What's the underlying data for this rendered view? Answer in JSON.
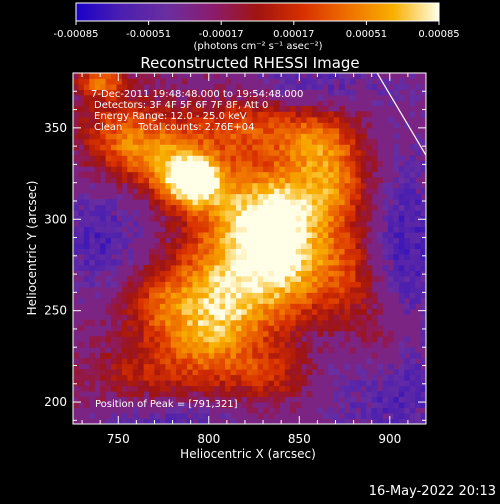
{
  "colors": {
    "background": "#000000",
    "foreground": "#ffffff",
    "colormap": [
      "#1a00c8",
      "#4b1fb0",
      "#6a2ea0",
      "#8a1c6e",
      "#a01410",
      "#d83000",
      "#f07000",
      "#f8b000",
      "#ffffe8"
    ]
  },
  "colorbar": {
    "ticks": [
      "-0.00085",
      "-0.00051",
      "-0.00017",
      "0.00017",
      "0.00051",
      "0.00085"
    ],
    "unit_label": "(photons cm⁻² s⁻¹ asec⁻²)"
  },
  "annotations": {
    "time_range": "7-Dec-2011 19:48:48.000 to 19:54:48.000",
    "detectors": "Detectors: 3F 4F 5F 6F 7F 8F, Att 0",
    "energy": "Energy Range: 12.0 - 25.0 keV",
    "clean": "Clean     Total counts: 2.76E+04",
    "peak": "Position of Peak = [791,321]"
  },
  "footer_timestamp": "16-May-2022 20:13",
  "chart_data": {
    "type": "heatmap",
    "title": "Reconstructed RHESSI Image",
    "xlabel": "Heliocentric X (arcsec)",
    "ylabel": "Heliocentric Y (arcsec)",
    "xlim": [
      725,
      920
    ],
    "ylim": [
      188,
      380
    ],
    "x_ticks": [
      750,
      800,
      850,
      900
    ],
    "y_ticks": [
      200,
      250,
      300,
      350
    ],
    "colorbar_range": [
      -0.00085,
      0.00085
    ],
    "peak_position": [
      791,
      321
    ],
    "blobs": [
      {
        "x": 791,
        "y": 321,
        "sx": 12,
        "sy": 10,
        "amp": 1.0
      },
      {
        "x": 775,
        "y": 335,
        "sx": 18,
        "sy": 15,
        "amp": 0.55
      },
      {
        "x": 830,
        "y": 305,
        "sx": 22,
        "sy": 18,
        "amp": 0.82
      },
      {
        "x": 845,
        "y": 275,
        "sx": 20,
        "sy": 20,
        "amp": 0.7
      },
      {
        "x": 810,
        "y": 265,
        "sx": 22,
        "sy": 22,
        "amp": 0.62
      },
      {
        "x": 800,
        "y": 235,
        "sx": 20,
        "sy": 20,
        "amp": 0.55
      },
      {
        "x": 870,
        "y": 320,
        "sx": 18,
        "sy": 18,
        "amp": 0.6
      },
      {
        "x": 860,
        "y": 345,
        "sx": 15,
        "sy": 12,
        "amp": 0.45
      },
      {
        "x": 770,
        "y": 255,
        "sx": 15,
        "sy": 15,
        "amp": 0.35
      },
      {
        "x": 750,
        "y": 345,
        "sx": 15,
        "sy": 15,
        "amp": 0.45
      },
      {
        "x": 740,
        "y": 375,
        "sx": 10,
        "sy": 6,
        "amp": 0.55
      },
      {
        "x": 820,
        "y": 350,
        "sx": 20,
        "sy": 12,
        "amp": 0.45
      },
      {
        "x": 760,
        "y": 215,
        "sx": 20,
        "sy": 12,
        "amp": 0.25
      },
      {
        "x": 880,
        "y": 270,
        "sx": 12,
        "sy": 20,
        "amp": 0.4
      },
      {
        "x": 835,
        "y": 215,
        "sx": 15,
        "sy": 10,
        "amp": 0.3
      },
      {
        "x": 895,
        "y": 230,
        "sx": 12,
        "sy": 18,
        "amp": 0.25
      }
    ],
    "negative_regions": [
      {
        "x": 740,
        "y": 290,
        "sx": 20,
        "sy": 25,
        "amp": -0.35
      },
      {
        "x": 905,
        "y": 290,
        "sx": 22,
        "sy": 40,
        "amp": -0.4
      },
      {
        "x": 900,
        "y": 205,
        "sx": 25,
        "sy": 20,
        "amp": -0.35
      },
      {
        "x": 780,
        "y": 190,
        "sx": 30,
        "sy": 10,
        "amp": -0.3
      },
      {
        "x": 860,
        "y": 375,
        "sx": 30,
        "sy": 10,
        "amp": -0.3
      }
    ],
    "limb_line": [
      [
        893,
        380
      ],
      [
        920,
        335
      ]
    ]
  }
}
